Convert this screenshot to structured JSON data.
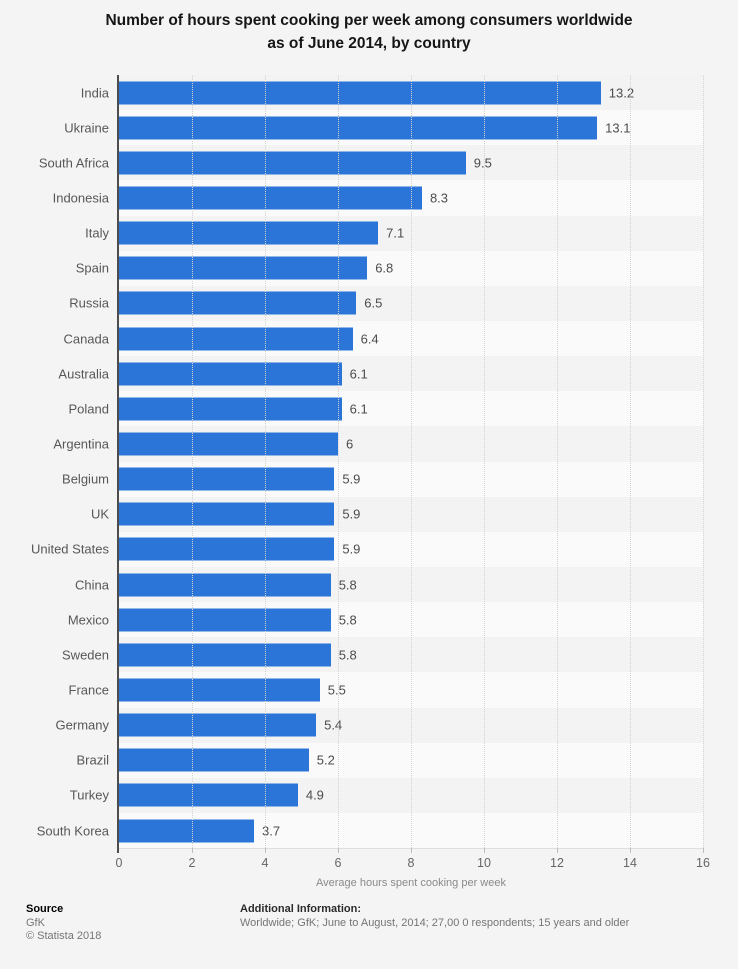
{
  "title": "Number of hours spent cooking per week among consumers worldwide as of June 2014, by country",
  "chart_data": {
    "type": "bar",
    "orientation": "horizontal",
    "title": "Number of hours spent cooking per week among consumers worldwide as of June 2014, by country",
    "categories": [
      "India",
      "Ukraine",
      "South Africa",
      "Indonesia",
      "Italy",
      "Spain",
      "Russia",
      "Canada",
      "Australia",
      "Poland",
      "Argentina",
      "Belgium",
      "UK",
      "United States",
      "China",
      "Mexico",
      "Sweden",
      "France",
      "Germany",
      "Brazil",
      "Turkey",
      "South Korea"
    ],
    "values": [
      13.2,
      13.1,
      9.5,
      8.3,
      7.1,
      6.8,
      6.5,
      6.4,
      6.1,
      6.1,
      6,
      5.9,
      5.9,
      5.9,
      5.8,
      5.8,
      5.8,
      5.5,
      5.4,
      5.2,
      4.9,
      3.7
    ],
    "xlabel": "Average hours spent cooking per week",
    "ylabel": "",
    "x_ticks": [
      0,
      2,
      4,
      6,
      8,
      10,
      12,
      14,
      16
    ],
    "xlim": [
      0,
      16
    ],
    "grid": "vertical-dotted",
    "legend": "none",
    "bar_color": "#2b74d8",
    "row_band_colors": [
      "#f3f3f3",
      "#fafafa"
    ]
  },
  "footer": {
    "source_label": "Source",
    "source_value": "GfK",
    "copyright": "© Statista 2018",
    "additional_info_label": "Additional Information:",
    "additional_info_value": "Worldwide; GfK; June to August, 2014; 27,00 0 respondents; 15 years and older"
  },
  "colors": {
    "page_background": "#f4f4f4",
    "bar": "#2b74d8",
    "axis_line": "#4d4d4d",
    "gridline": "#d2d2d2",
    "title_text": "#161616",
    "label_text": "#575757",
    "value_text": "#4c4c4c",
    "tick_text": "#666666",
    "axis_title_text": "#8a8a8a",
    "footer_muted_text": "#757575"
  }
}
